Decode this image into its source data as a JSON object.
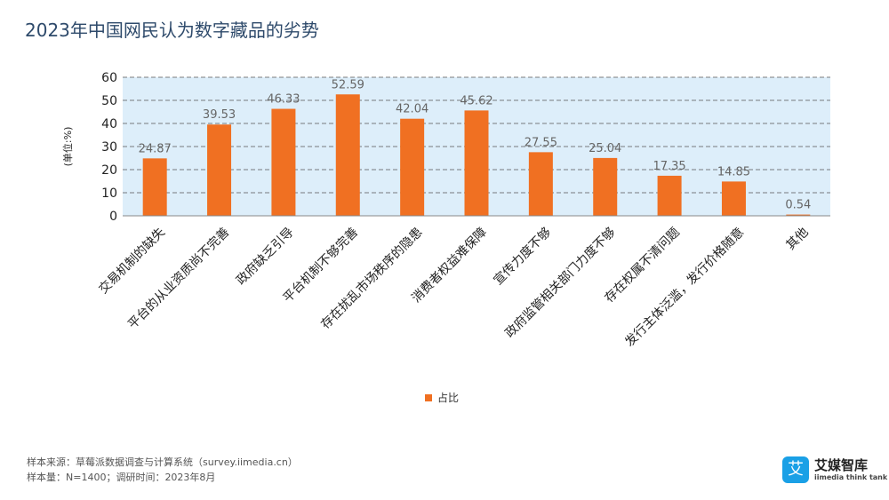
{
  "title": "2023年中国网民认为数字藏品的劣势",
  "chart_data": {
    "type": "bar",
    "title": "2023年中国网民认为数字藏品的劣势",
    "ylabel": "(单位:%)",
    "xlabel": "",
    "ylim": [
      0,
      60
    ],
    "yticks": [
      0,
      10,
      20,
      30,
      40,
      50,
      60
    ],
    "grid": true,
    "legend_position": "bottom",
    "categories": [
      "交易机制的缺失",
      "平台的从业资质尚不完善",
      "政府缺乏引导",
      "平台机制不够完善",
      "存在扰乱市场秩序的隐患",
      "消费者权益难保障",
      "宣传力度不够",
      "政府监管相关部门力度不够",
      "存在权属不清问题",
      "发行主体泛滥，发行价格随意",
      "其他"
    ],
    "series": [
      {
        "name": "占比",
        "color": "#f07022",
        "values": [
          24.87,
          39.53,
          46.33,
          52.59,
          42.04,
          45.62,
          27.55,
          25.04,
          17.35,
          14.85,
          0.54
        ]
      }
    ]
  },
  "footer": {
    "source": "样本来源：草莓派数据调查与计算系统（survey.iimedia.cn）",
    "sample": "样本量：N=1400；调研时间：2023年8月"
  },
  "logo": {
    "glyph": "艾",
    "name": "艾媒智库",
    "sub": "iimedia think tank",
    "color": "#1aa0e6"
  }
}
